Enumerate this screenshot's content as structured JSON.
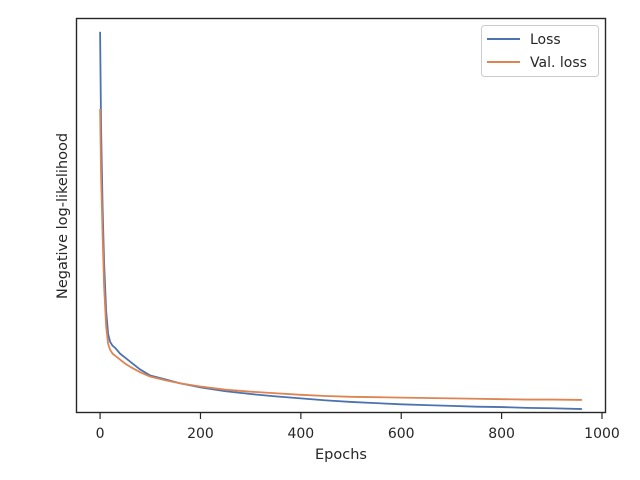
{
  "chart_data": {
    "type": "line",
    "title": "",
    "xlabel": "Epochs",
    "ylabel": "Negative log-likelihood",
    "xlim": [
      -48,
      1008
    ],
    "ylim": [
      0.0,
      1.0
    ],
    "y_tick_labels_shown": false,
    "x_ticks": [
      0,
      200,
      400,
      600,
      800,
      1000
    ],
    "x_tick_labels": [
      "0",
      "200",
      "400",
      "600",
      "800",
      "1000"
    ],
    "grid": false,
    "legend": {
      "position": "top-right",
      "entries": [
        "Loss",
        "Val. loss"
      ]
    },
    "series": [
      {
        "name": "Loss",
        "color": "#4c72b0",
        "x": [
          0,
          2,
          5,
          8,
          12,
          16,
          20,
          25,
          30,
          40,
          50,
          60,
          80,
          100,
          130,
          160,
          200,
          250,
          300,
          350,
          400,
          450,
          500,
          550,
          600,
          650,
          700,
          750,
          800,
          850,
          900,
          960
        ],
        "y": [
          0.965,
          0.72,
          0.52,
          0.38,
          0.26,
          0.2,
          0.18,
          0.17,
          0.165,
          0.15,
          0.14,
          0.13,
          0.11,
          0.095,
          0.085,
          0.075,
          0.065,
          0.055,
          0.048,
          0.042,
          0.037,
          0.032,
          0.028,
          0.025,
          0.022,
          0.02,
          0.018,
          0.016,
          0.015,
          0.013,
          0.012,
          0.01
        ]
      },
      {
        "name": "Val. loss",
        "color": "#dd8452",
        "x": [
          0,
          2,
          5,
          8,
          12,
          16,
          20,
          25,
          30,
          40,
          50,
          60,
          80,
          100,
          130,
          160,
          200,
          250,
          300,
          350,
          400,
          450,
          500,
          550,
          600,
          650,
          700,
          750,
          800,
          850,
          900,
          960
        ],
        "y": [
          0.77,
          0.6,
          0.45,
          0.32,
          0.22,
          0.175,
          0.16,
          0.15,
          0.145,
          0.135,
          0.125,
          0.117,
          0.103,
          0.092,
          0.083,
          0.075,
          0.067,
          0.059,
          0.054,
          0.05,
          0.046,
          0.043,
          0.041,
          0.04,
          0.039,
          0.038,
          0.037,
          0.036,
          0.035,
          0.034,
          0.034,
          0.033
        ]
      }
    ]
  }
}
